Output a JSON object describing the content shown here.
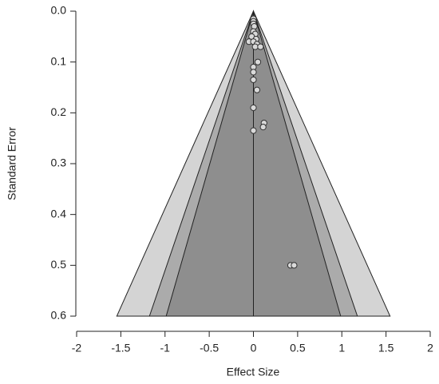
{
  "chart_data": {
    "type": "scatter",
    "xlabel": "Effect Size",
    "ylabel": "Standard Error",
    "xlim": [
      -2,
      2
    ],
    "xticks": [
      -2,
      -1.5,
      -1,
      -0.5,
      0,
      0.5,
      1,
      1.5,
      2
    ],
    "ylim": [
      0,
      0.6
    ],
    "yticks": [
      {
        "value": 0,
        "label": "0.0"
      },
      0.1,
      0.2,
      0.3,
      0.4,
      0.5,
      0.6
    ],
    "y_inverted": true,
    "contours": [
      {
        "z": 2.576,
        "color": "#d4d4d4"
      },
      {
        "z": 1.96,
        "color": "#ababab"
      },
      {
        "z": 1.645,
        "color": "#8e8e8e"
      }
    ],
    "series": [
      {
        "color": "#d9d9d9",
        "x": [
          0,
          0,
          0,
          0.01,
          0,
          0.02,
          -0.02,
          0.03,
          -0.05,
          0,
          0.04,
          0.02,
          0.08,
          0.05,
          0,
          0,
          0,
          0.04,
          0,
          0.12,
          0.11,
          0,
          0.42,
          0.46
        ],
        "values": [
          0.015,
          0.02,
          0.025,
          0.03,
          0.04,
          0.045,
          0.05,
          0.055,
          0.06,
          0.06,
          0.065,
          0.07,
          0.07,
          0.1,
          0.11,
          0.12,
          0.135,
          0.155,
          0.19,
          0.22,
          0.228,
          0.235,
          0.5,
          0.5
        ]
      }
    ]
  }
}
